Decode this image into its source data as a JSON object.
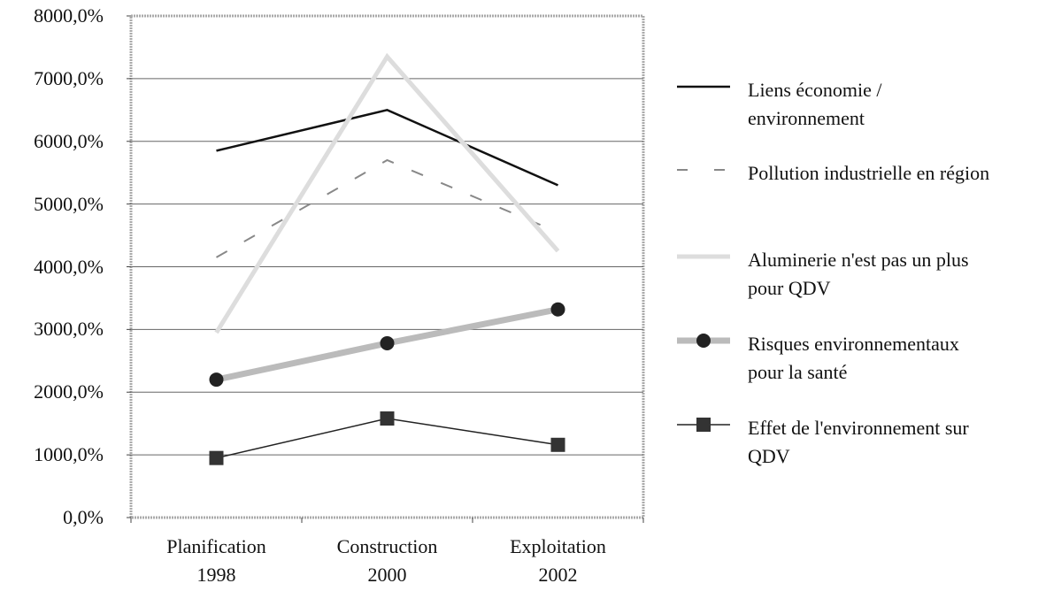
{
  "chart_data": {
    "type": "line",
    "categories": [
      "Planification\n1998",
      "Construction\n2000",
      "Exploitation\n2002"
    ],
    "ylim": [
      0,
      8000
    ],
    "yticks": [
      {
        "value": 0,
        "label": "0,0%"
      },
      {
        "value": 1000,
        "label": "1000,0%"
      },
      {
        "value": 2000,
        "label": "2000,0%"
      },
      {
        "value": 3000,
        "label": "3000,0%"
      },
      {
        "value": 4000,
        "label": "4000,0%"
      },
      {
        "value": 5000,
        "label": "5000,0%"
      },
      {
        "value": 6000,
        "label": "6000,0%"
      },
      {
        "value": 7000,
        "label": "7000,0%"
      },
      {
        "value": 8000,
        "label": "8000,0%"
      }
    ],
    "grid": true,
    "legend": "right",
    "series": [
      {
        "name": "Liens économie / environnement",
        "color": "#111111",
        "style": "solid",
        "width": 2.5,
        "values": [
          5850,
          6500,
          5300
        ]
      },
      {
        "name": "Pollution industrielle en région",
        "color": "#888888",
        "style": "dashed",
        "width": 2,
        "values": [
          4150,
          5700,
          4550
        ]
      },
      {
        "name": "Aluminerie n'est pas un plus pour QDV",
        "color": "#dddddd",
        "style": "solid",
        "width": 5,
        "values": [
          2950,
          7350,
          4250
        ]
      },
      {
        "name": "Risques environnementaux pour la santé",
        "color": "#bbbbbb",
        "style": "solid",
        "width": 7,
        "marker": "circle",
        "values": [
          2200,
          2780,
          3320
        ]
      },
      {
        "name": "Effet de l'environnement sur QDV",
        "color": "#222222",
        "style": "solid",
        "width": 1.5,
        "marker": "square",
        "values": [
          950,
          1580,
          1160
        ]
      }
    ]
  }
}
